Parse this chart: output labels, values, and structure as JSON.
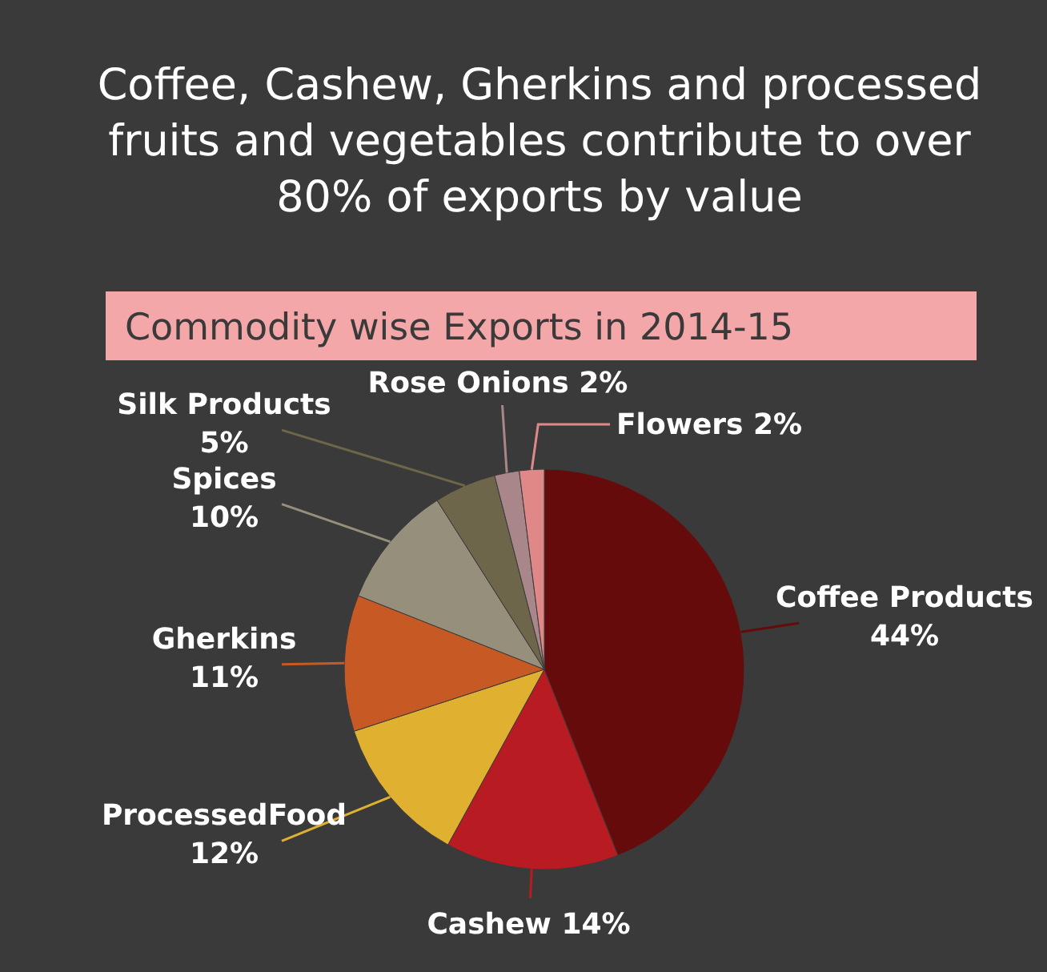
{
  "chart_data": {
    "type": "pie",
    "title": "Coffee, Cashew, Gherkins and processed fruits and vegetables contribute to over 80% of exports by value",
    "subtitle": "Commodity wise Exports in 2014-15",
    "categories": [
      "Coffee Products",
      "Cashew",
      "ProcessedFood",
      "Gherkins",
      "Spices",
      "Silk Products",
      "Rose Onions",
      "Flowers"
    ],
    "values": [
      44,
      14,
      12,
      11,
      10,
      5,
      2,
      2
    ],
    "value_labels": [
      "44%",
      "14%",
      "12%",
      "11%",
      "10%",
      "5%",
      "2%",
      "2%"
    ],
    "colors": [
      "#650b0b",
      "#b81c22",
      "#e0b030",
      "#c75a24",
      "#958f7b",
      "#6e664a",
      "#a8868a",
      "#e08888"
    ]
  }
}
